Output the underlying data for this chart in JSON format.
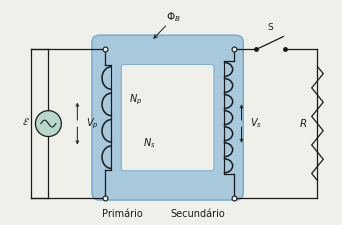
{
  "background_color": "#f0f0eb",
  "core_color": "#a8c8dc",
  "core_outline": "#7aabcc",
  "wire_color": "#1a1a1a",
  "label_primary": "Primário",
  "label_secondary": "Secundário",
  "figsize": [
    3.42,
    2.25
  ],
  "dpi": 100
}
